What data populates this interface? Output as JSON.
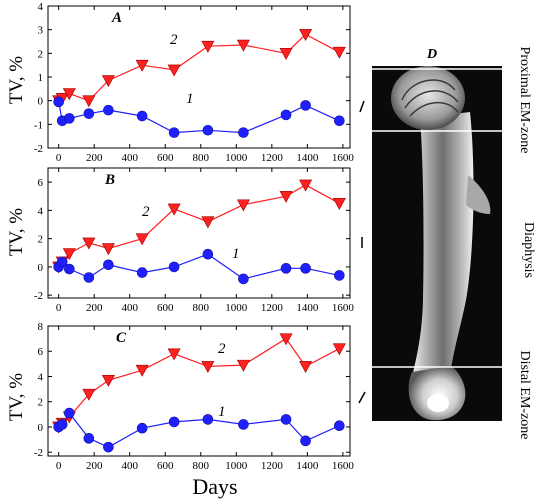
{
  "figure": {
    "x_label": "Days",
    "y_label": "TV, %",
    "image_panel": {
      "letter": "D",
      "zones": [
        "Proximal EM-zone",
        "Diaphysis",
        "Distal EM-zone"
      ]
    }
  },
  "chart_data": [
    {
      "panel": "A",
      "type": "line",
      "x_ticks": [
        0,
        200,
        400,
        600,
        800,
        1000,
        1200,
        1400,
        1600
      ],
      "y_ticks": [
        -2,
        -1,
        0,
        1,
        2,
        3,
        4
      ],
      "xlim": [
        -60,
        1640
      ],
      "ylim": [
        -2,
        4
      ],
      "grid": false,
      "legend": "none",
      "series": [
        {
          "name": "2",
          "marker": "triangle-down",
          "color": "#ff2020",
          "x": [
            0,
            20,
            60,
            170,
            280,
            470,
            650,
            840,
            1040,
            1280,
            1390,
            1580
          ],
          "y": [
            0,
            0.1,
            0.3,
            0,
            0.85,
            1.5,
            1.3,
            2.3,
            2.35,
            2.0,
            2.8,
            2.05
          ]
        },
        {
          "name": "1",
          "marker": "circle",
          "color": "#2020ff",
          "x": [
            0,
            20,
            60,
            170,
            280,
            470,
            650,
            840,
            1040,
            1280,
            1390,
            1580
          ],
          "y": [
            -0.05,
            -0.85,
            -0.75,
            -0.55,
            -0.4,
            -0.65,
            -1.35,
            -1.25,
            -1.35,
            -0.6,
            -0.2,
            -0.85
          ]
        }
      ]
    },
    {
      "panel": "B",
      "type": "line",
      "x_ticks": [
        0,
        200,
        400,
        600,
        800,
        1000,
        1200,
        1400,
        1600
      ],
      "y_ticks": [
        -2,
        0,
        2,
        4,
        6
      ],
      "xlim": [
        -60,
        1640
      ],
      "ylim": [
        -2.2,
        7
      ],
      "grid": false,
      "legend": "none",
      "series": [
        {
          "name": "2",
          "marker": "triangle-down",
          "color": "#ff2020",
          "x": [
            0,
            20,
            60,
            170,
            280,
            470,
            650,
            840,
            1040,
            1280,
            1390,
            1580
          ],
          "y": [
            0,
            0.35,
            0.95,
            1.7,
            1.3,
            2.0,
            4.1,
            3.2,
            4.4,
            5.0,
            5.8,
            4.5
          ]
        },
        {
          "name": "1",
          "marker": "circle",
          "color": "#2020ff",
          "x": [
            0,
            20,
            60,
            170,
            280,
            470,
            650,
            840,
            1040,
            1280,
            1390,
            1580
          ],
          "y": [
            0,
            0.35,
            -0.15,
            -0.75,
            0.15,
            -0.4,
            0,
            0.9,
            -0.85,
            -0.1,
            -0.1,
            -0.6
          ]
        }
      ]
    },
    {
      "panel": "C",
      "type": "line",
      "x_ticks": [
        0,
        200,
        400,
        600,
        800,
        1000,
        1200,
        1400,
        1600
      ],
      "y_ticks": [
        -2,
        0,
        2,
        4,
        6,
        8
      ],
      "xlim": [
        -60,
        1640
      ],
      "ylim": [
        -2.3,
        8
      ],
      "grid": false,
      "legend": "none",
      "series": [
        {
          "name": "2",
          "marker": "triangle-down",
          "color": "#ff2020",
          "x": [
            0,
            20,
            60,
            170,
            280,
            470,
            650,
            840,
            1040,
            1280,
            1390,
            1580
          ],
          "y": [
            0,
            0.3,
            0.8,
            2.6,
            3.7,
            4.5,
            5.8,
            4.8,
            4.9,
            7.0,
            4.8,
            6.2
          ]
        },
        {
          "name": "1",
          "marker": "circle",
          "color": "#2020ff",
          "x": [
            0,
            20,
            60,
            170,
            280,
            470,
            650,
            840,
            1040,
            1280,
            1390,
            1580
          ],
          "y": [
            0,
            0.2,
            1.1,
            -0.9,
            -1.6,
            -0.1,
            0.4,
            0.6,
            0.2,
            0.6,
            -1.1,
            0.1
          ]
        }
      ]
    }
  ]
}
